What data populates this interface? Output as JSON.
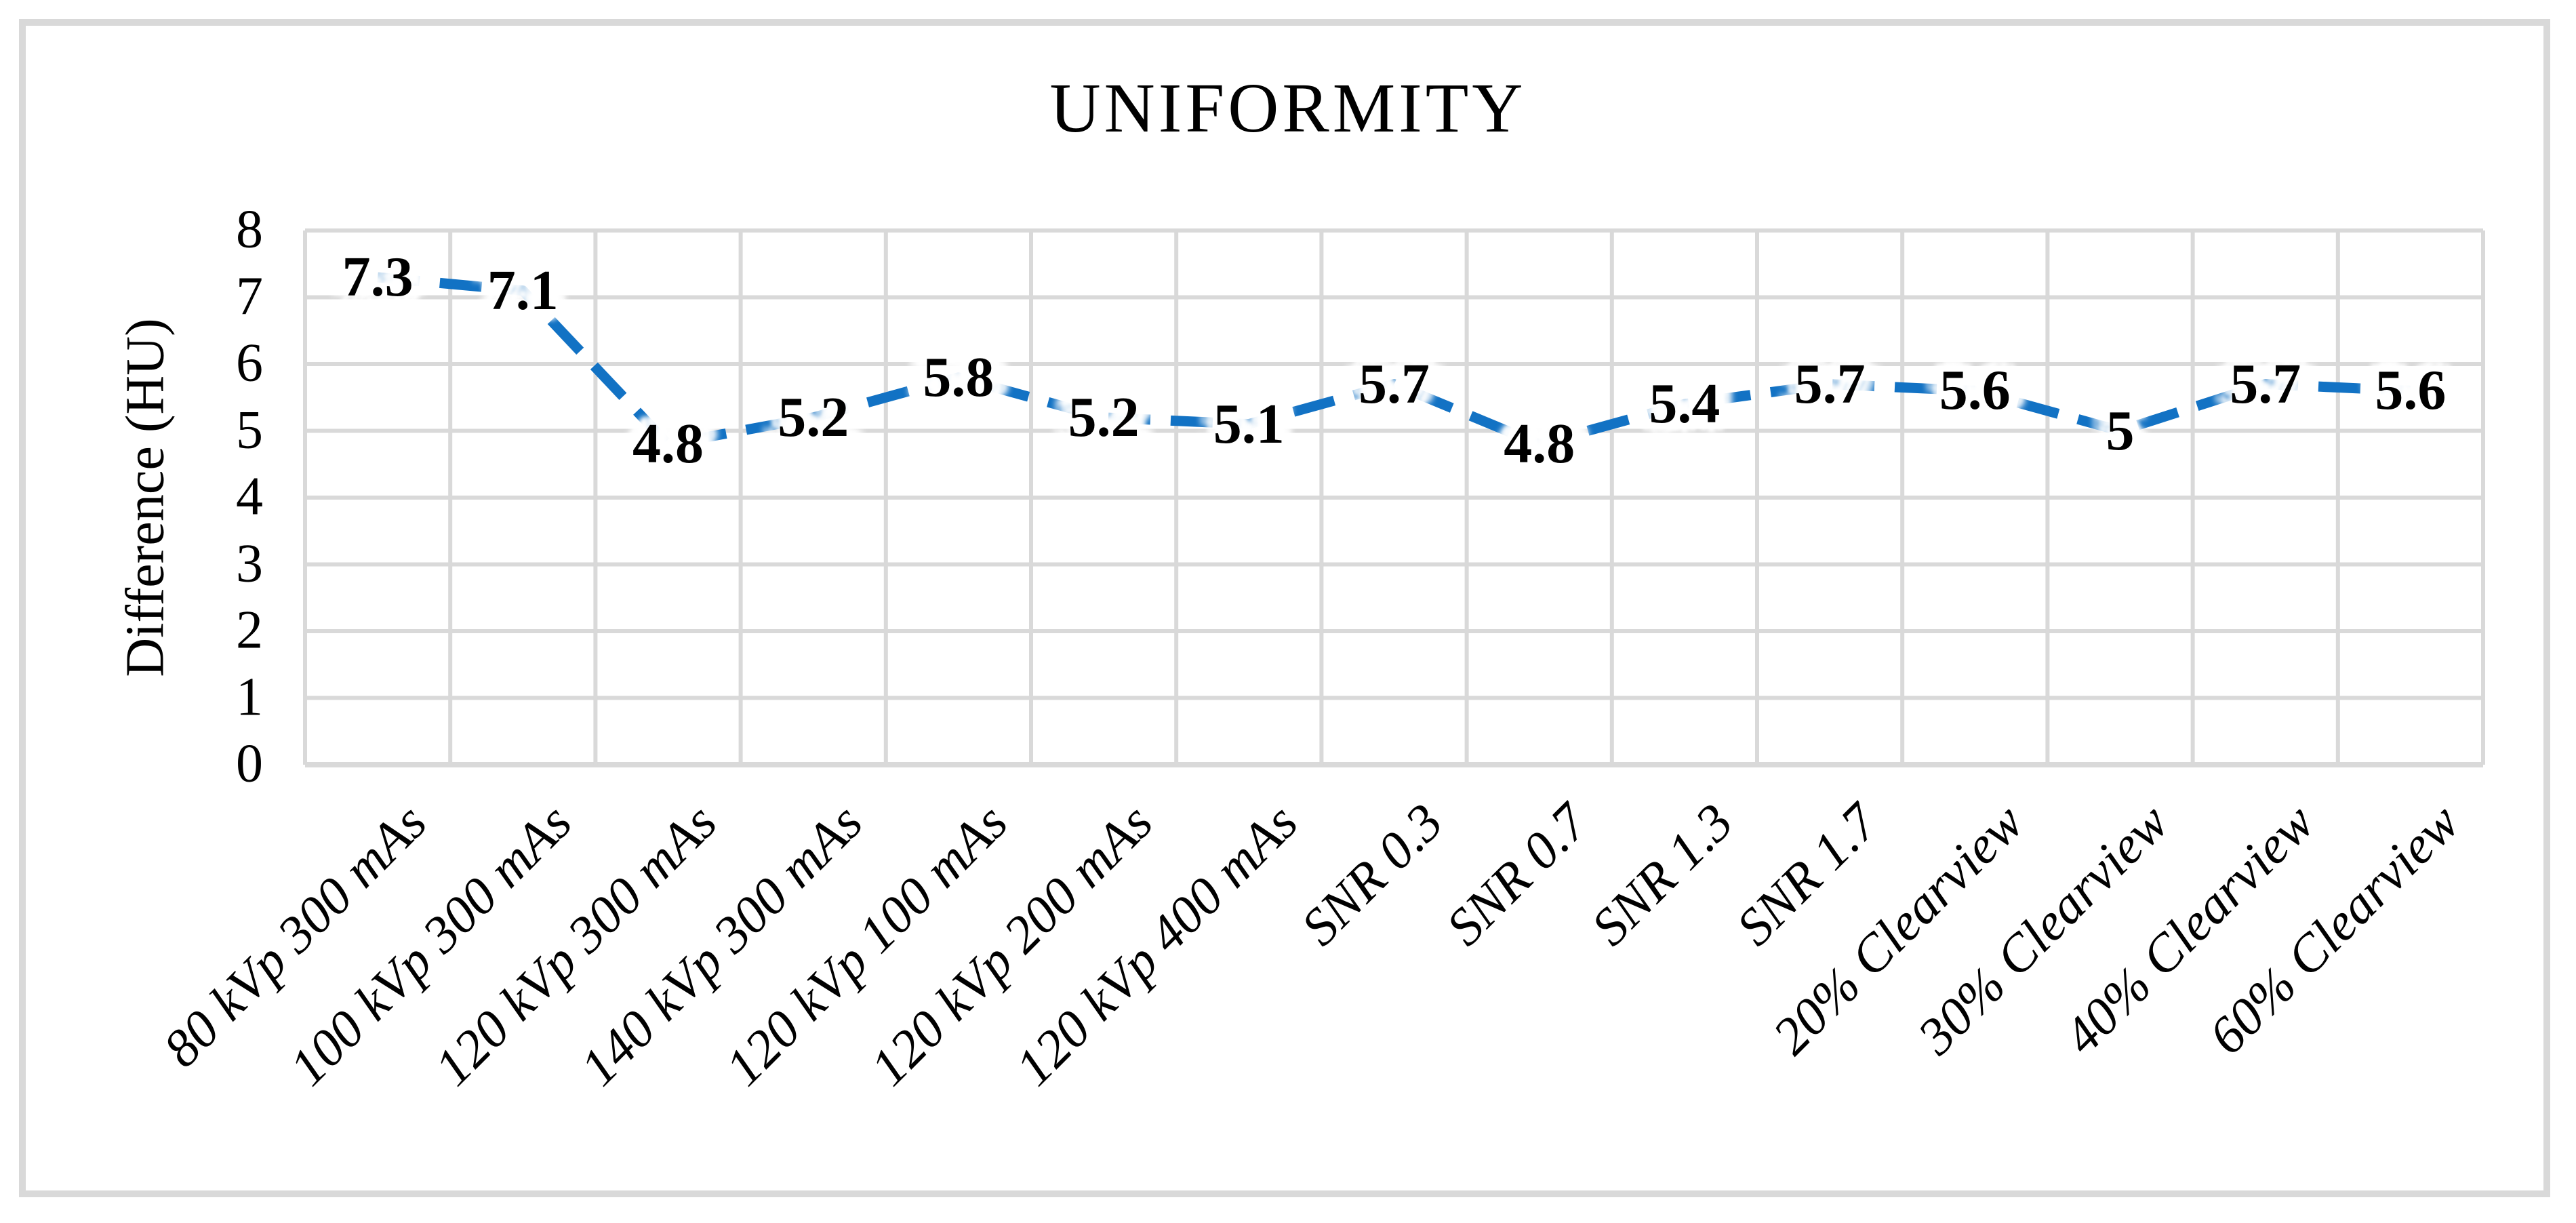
{
  "figure": {
    "background_color": "#ffffff",
    "border_color": "#d9d9d9"
  },
  "chart_data": {
    "type": "line",
    "title": "UNIFORMITY",
    "xlabel": "",
    "ylabel": "Difference (HU)",
    "categories": [
      "80 kVp 300 mAs",
      "100 kVp 300 mAs",
      "120 kVp 300 mAs",
      "140 kVp 300 mAs",
      "120 kVp 100 mAs",
      "120 kVp 200 mAs",
      "120 kVp 400 mAs",
      "SNR 0.3",
      "SNR 0.7",
      "SNR 1.3",
      "SNR 1.7",
      "20% Clearview",
      "30% Clearview",
      "40% Clearview",
      "60% Clearview"
    ],
    "series": [
      {
        "values": [
          7.3,
          7.1,
          4.8,
          5.2,
          5.8,
          5.2,
          5.1,
          5.7,
          4.8,
          5.4,
          5.7,
          5.6,
          5,
          5.7,
          5.6
        ],
        "data_labels": [
          "7.3",
          "7.1",
          "4.8",
          "5.2",
          "5.8",
          "5.2",
          "5.1",
          "5.7",
          "4.8",
          "5.4",
          "5.7",
          "5.6",
          "5",
          "5.7",
          "5.6"
        ],
        "color": "#1272c4",
        "line_style": "dashed",
        "markers": "none"
      }
    ],
    "ylim": [
      0,
      8
    ],
    "yticks": [
      "0",
      "1",
      "2",
      "3",
      "4",
      "5",
      "6",
      "7",
      "8"
    ],
    "grid": "both",
    "gridline_color": "#d9d9d9",
    "legend_position": "none",
    "data_label_position": "center"
  }
}
